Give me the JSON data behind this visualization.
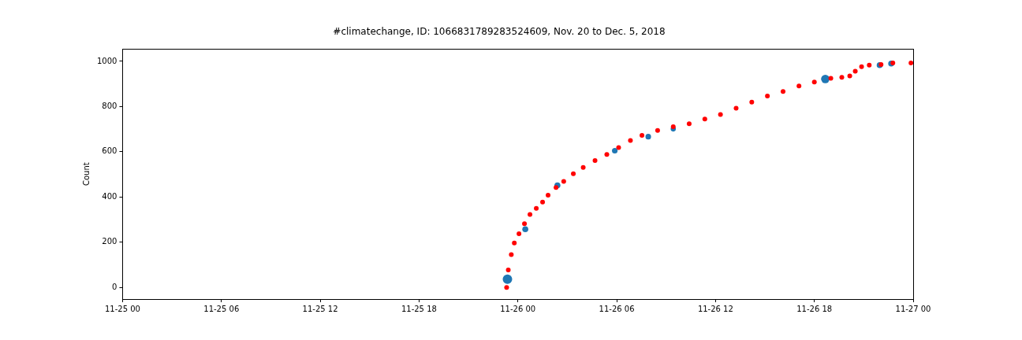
{
  "chart_data": {
    "type": "scatter",
    "title": "#climatechange, ID: 1066831789283524609, Nov. 20 to Dec. 5, 2018",
    "ylabel": "Count",
    "xlim": [
      "2018-11-25T00:00",
      "2018-11-27T00:00"
    ],
    "xticks": [
      {
        "value": "2018-11-25T00:00",
        "label": "11-25 00"
      },
      {
        "value": "2018-11-25T06:00",
        "label": "11-25 06"
      },
      {
        "value": "2018-11-25T12:00",
        "label": "11-25 12"
      },
      {
        "value": "2018-11-25T18:00",
        "label": "11-25 18"
      },
      {
        "value": "2018-11-26T00:00",
        "label": "11-26 00"
      },
      {
        "value": "2018-11-26T06:00",
        "label": "11-26 06"
      },
      {
        "value": "2018-11-26T12:00",
        "label": "11-26 12"
      },
      {
        "value": "2018-11-26T18:00",
        "label": "11-26 18"
      },
      {
        "value": "2018-11-27T00:00",
        "label": "11-27 00"
      }
    ],
    "ylim": [
      -51,
      1054
    ],
    "yticks": [
      0,
      200,
      400,
      600,
      800,
      1000
    ],
    "grid": false,
    "marker": "circle",
    "series": [
      {
        "type": "bubble",
        "color": "#1f77b4",
        "x": [
          "2018-11-25T23:22",
          "2018-11-26T00:27",
          "2018-11-26T02:24",
          "2018-11-26T05:53",
          "2018-11-26T07:55",
          "2018-11-26T09:26",
          "2018-11-26T18:40",
          "2018-11-26T21:58",
          "2018-11-26T22:40"
        ],
        "values": [
          37,
          258,
          452,
          605,
          667,
          701,
          922,
          983,
          990
        ],
        "sizes": [
          1,
          0.4,
          0.4,
          0.35,
          0.35,
          0.3,
          0.8,
          0.4,
          0.4
        ]
      },
      {
        "type": "scatter",
        "color": "#ff0000",
        "x": [
          "2018-11-25T23:19",
          "2018-11-25T23:25",
          "2018-11-25T23:36",
          "2018-11-25T23:47",
          "2018-11-26T00:04",
          "2018-11-26T00:24",
          "2018-11-26T00:44",
          "2018-11-26T01:07",
          "2018-11-26T01:30",
          "2018-11-26T01:50",
          "2018-11-26T02:19",
          "2018-11-26T02:47",
          "2018-11-26T03:22",
          "2018-11-26T03:58",
          "2018-11-26T04:41",
          "2018-11-26T05:24",
          "2018-11-26T06:07",
          "2018-11-26T06:50",
          "2018-11-26T07:32",
          "2018-11-26T08:29",
          "2018-11-26T09:26",
          "2018-11-26T10:24",
          "2018-11-26T11:21",
          "2018-11-26T12:18",
          "2018-11-26T13:15",
          "2018-11-26T14:12",
          "2018-11-26T15:09",
          "2018-11-26T16:06",
          "2018-11-26T17:04",
          "2018-11-26T18:00",
          "2018-11-26T19:00",
          "2018-11-26T19:40",
          "2018-11-26T20:09",
          "2018-11-26T20:29",
          "2018-11-26T20:52",
          "2018-11-26T21:20",
          "2018-11-26T22:03",
          "2018-11-26T22:46",
          "2018-11-26T23:52"
        ],
        "values": [
          0,
          78,
          146,
          197,
          238,
          282,
          323,
          350,
          378,
          408,
          442,
          469,
          503,
          531,
          561,
          588,
          619,
          650,
          673,
          694,
          711,
          724,
          745,
          765,
          793,
          820,
          847,
          867,
          891,
          908,
          925,
          929,
          935,
          956,
          976,
          983,
          986,
          993,
          993
        ]
      }
    ]
  }
}
